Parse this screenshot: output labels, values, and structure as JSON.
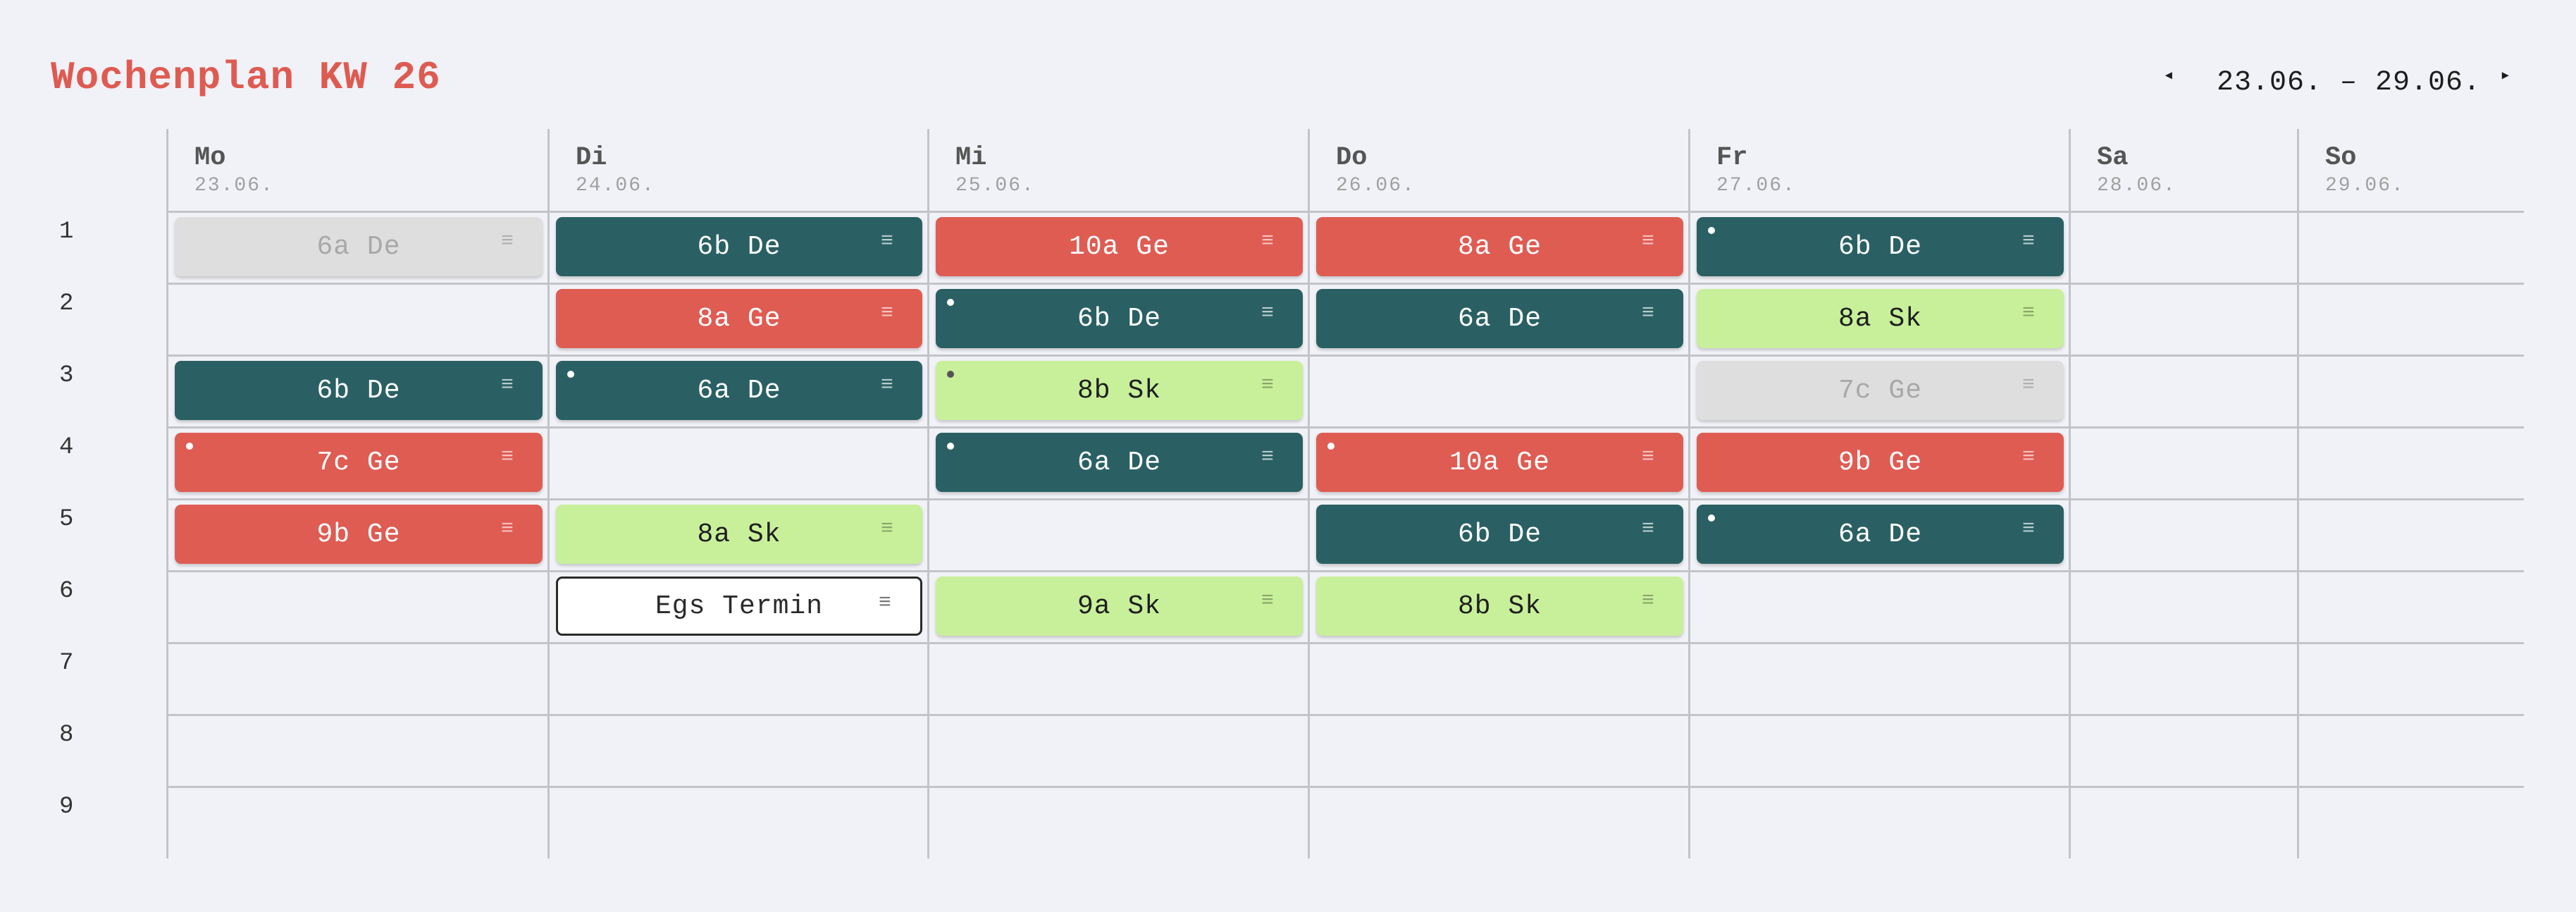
{
  "header": {
    "title": "Wochenplan KW 26",
    "prev_icon": "◂",
    "next_icon": "▸",
    "date_range": "23.06. – 29.06."
  },
  "days": [
    {
      "name": "Mo",
      "date": "23.06."
    },
    {
      "name": "Di",
      "date": "24.06."
    },
    {
      "name": "Mi",
      "date": "25.06."
    },
    {
      "name": "Do",
      "date": "26.06."
    },
    {
      "name": "Fr",
      "date": "27.06."
    },
    {
      "name": "Sa",
      "date": "28.06."
    },
    {
      "name": "So",
      "date": "29.06."
    }
  ],
  "periods": [
    "1",
    "2",
    "3",
    "4",
    "5",
    "6",
    "7",
    "8",
    "9"
  ],
  "menu_icon": "≡",
  "colors": {
    "teal": "#2a6063",
    "red": "#df5c53",
    "lime": "#c8f09a",
    "gray": "#dedede",
    "title": "#de5b52"
  },
  "lessons": [
    {
      "day": 0,
      "period": 1,
      "label": "6a De",
      "style": "gray",
      "dot": false
    },
    {
      "day": 1,
      "period": 1,
      "label": "6b De",
      "style": "teal",
      "dot": false
    },
    {
      "day": 2,
      "period": 1,
      "label": "10a Ge",
      "style": "red",
      "dot": false
    },
    {
      "day": 3,
      "period": 1,
      "label": "8a Ge",
      "style": "red",
      "dot": false
    },
    {
      "day": 4,
      "period": 1,
      "label": "6b De",
      "style": "teal",
      "dot": true
    },
    {
      "day": 1,
      "period": 2,
      "label": "8a Ge",
      "style": "red",
      "dot": false
    },
    {
      "day": 2,
      "period": 2,
      "label": "6b De",
      "style": "teal",
      "dot": true
    },
    {
      "day": 3,
      "period": 2,
      "label": "6a De",
      "style": "teal",
      "dot": false
    },
    {
      "day": 4,
      "period": 2,
      "label": "8a Sk",
      "style": "lime",
      "dot": false
    },
    {
      "day": 0,
      "period": 3,
      "label": "6b De",
      "style": "teal",
      "dot": false
    },
    {
      "day": 1,
      "period": 3,
      "label": "6a De",
      "style": "teal",
      "dot": true
    },
    {
      "day": 2,
      "period": 3,
      "label": "8b Sk",
      "style": "lime",
      "dot": true
    },
    {
      "day": 4,
      "period": 3,
      "label": "7c Ge",
      "style": "gray",
      "dot": false
    },
    {
      "day": 0,
      "period": 4,
      "label": "7c Ge",
      "style": "red",
      "dot": true
    },
    {
      "day": 2,
      "period": 4,
      "label": "6a De",
      "style": "teal",
      "dot": true
    },
    {
      "day": 3,
      "period": 4,
      "label": "10a Ge",
      "style": "red",
      "dot": true
    },
    {
      "day": 4,
      "period": 4,
      "label": "9b Ge",
      "style": "red",
      "dot": false
    },
    {
      "day": 0,
      "period": 5,
      "label": "9b Ge",
      "style": "red",
      "dot": false
    },
    {
      "day": 1,
      "period": 5,
      "label": "8a Sk",
      "style": "lime",
      "dot": false
    },
    {
      "day": 3,
      "period": 5,
      "label": "6b De",
      "style": "teal",
      "dot": false
    },
    {
      "day": 4,
      "period": 5,
      "label": "6a De",
      "style": "teal",
      "dot": true
    },
    {
      "day": 1,
      "period": 6,
      "label": "Egs Termin",
      "style": "outline",
      "dot": false
    },
    {
      "day": 2,
      "period": 6,
      "label": "9a Sk",
      "style": "lime",
      "dot": false
    },
    {
      "day": 3,
      "period": 6,
      "label": "8b Sk",
      "style": "lime",
      "dot": false
    }
  ]
}
